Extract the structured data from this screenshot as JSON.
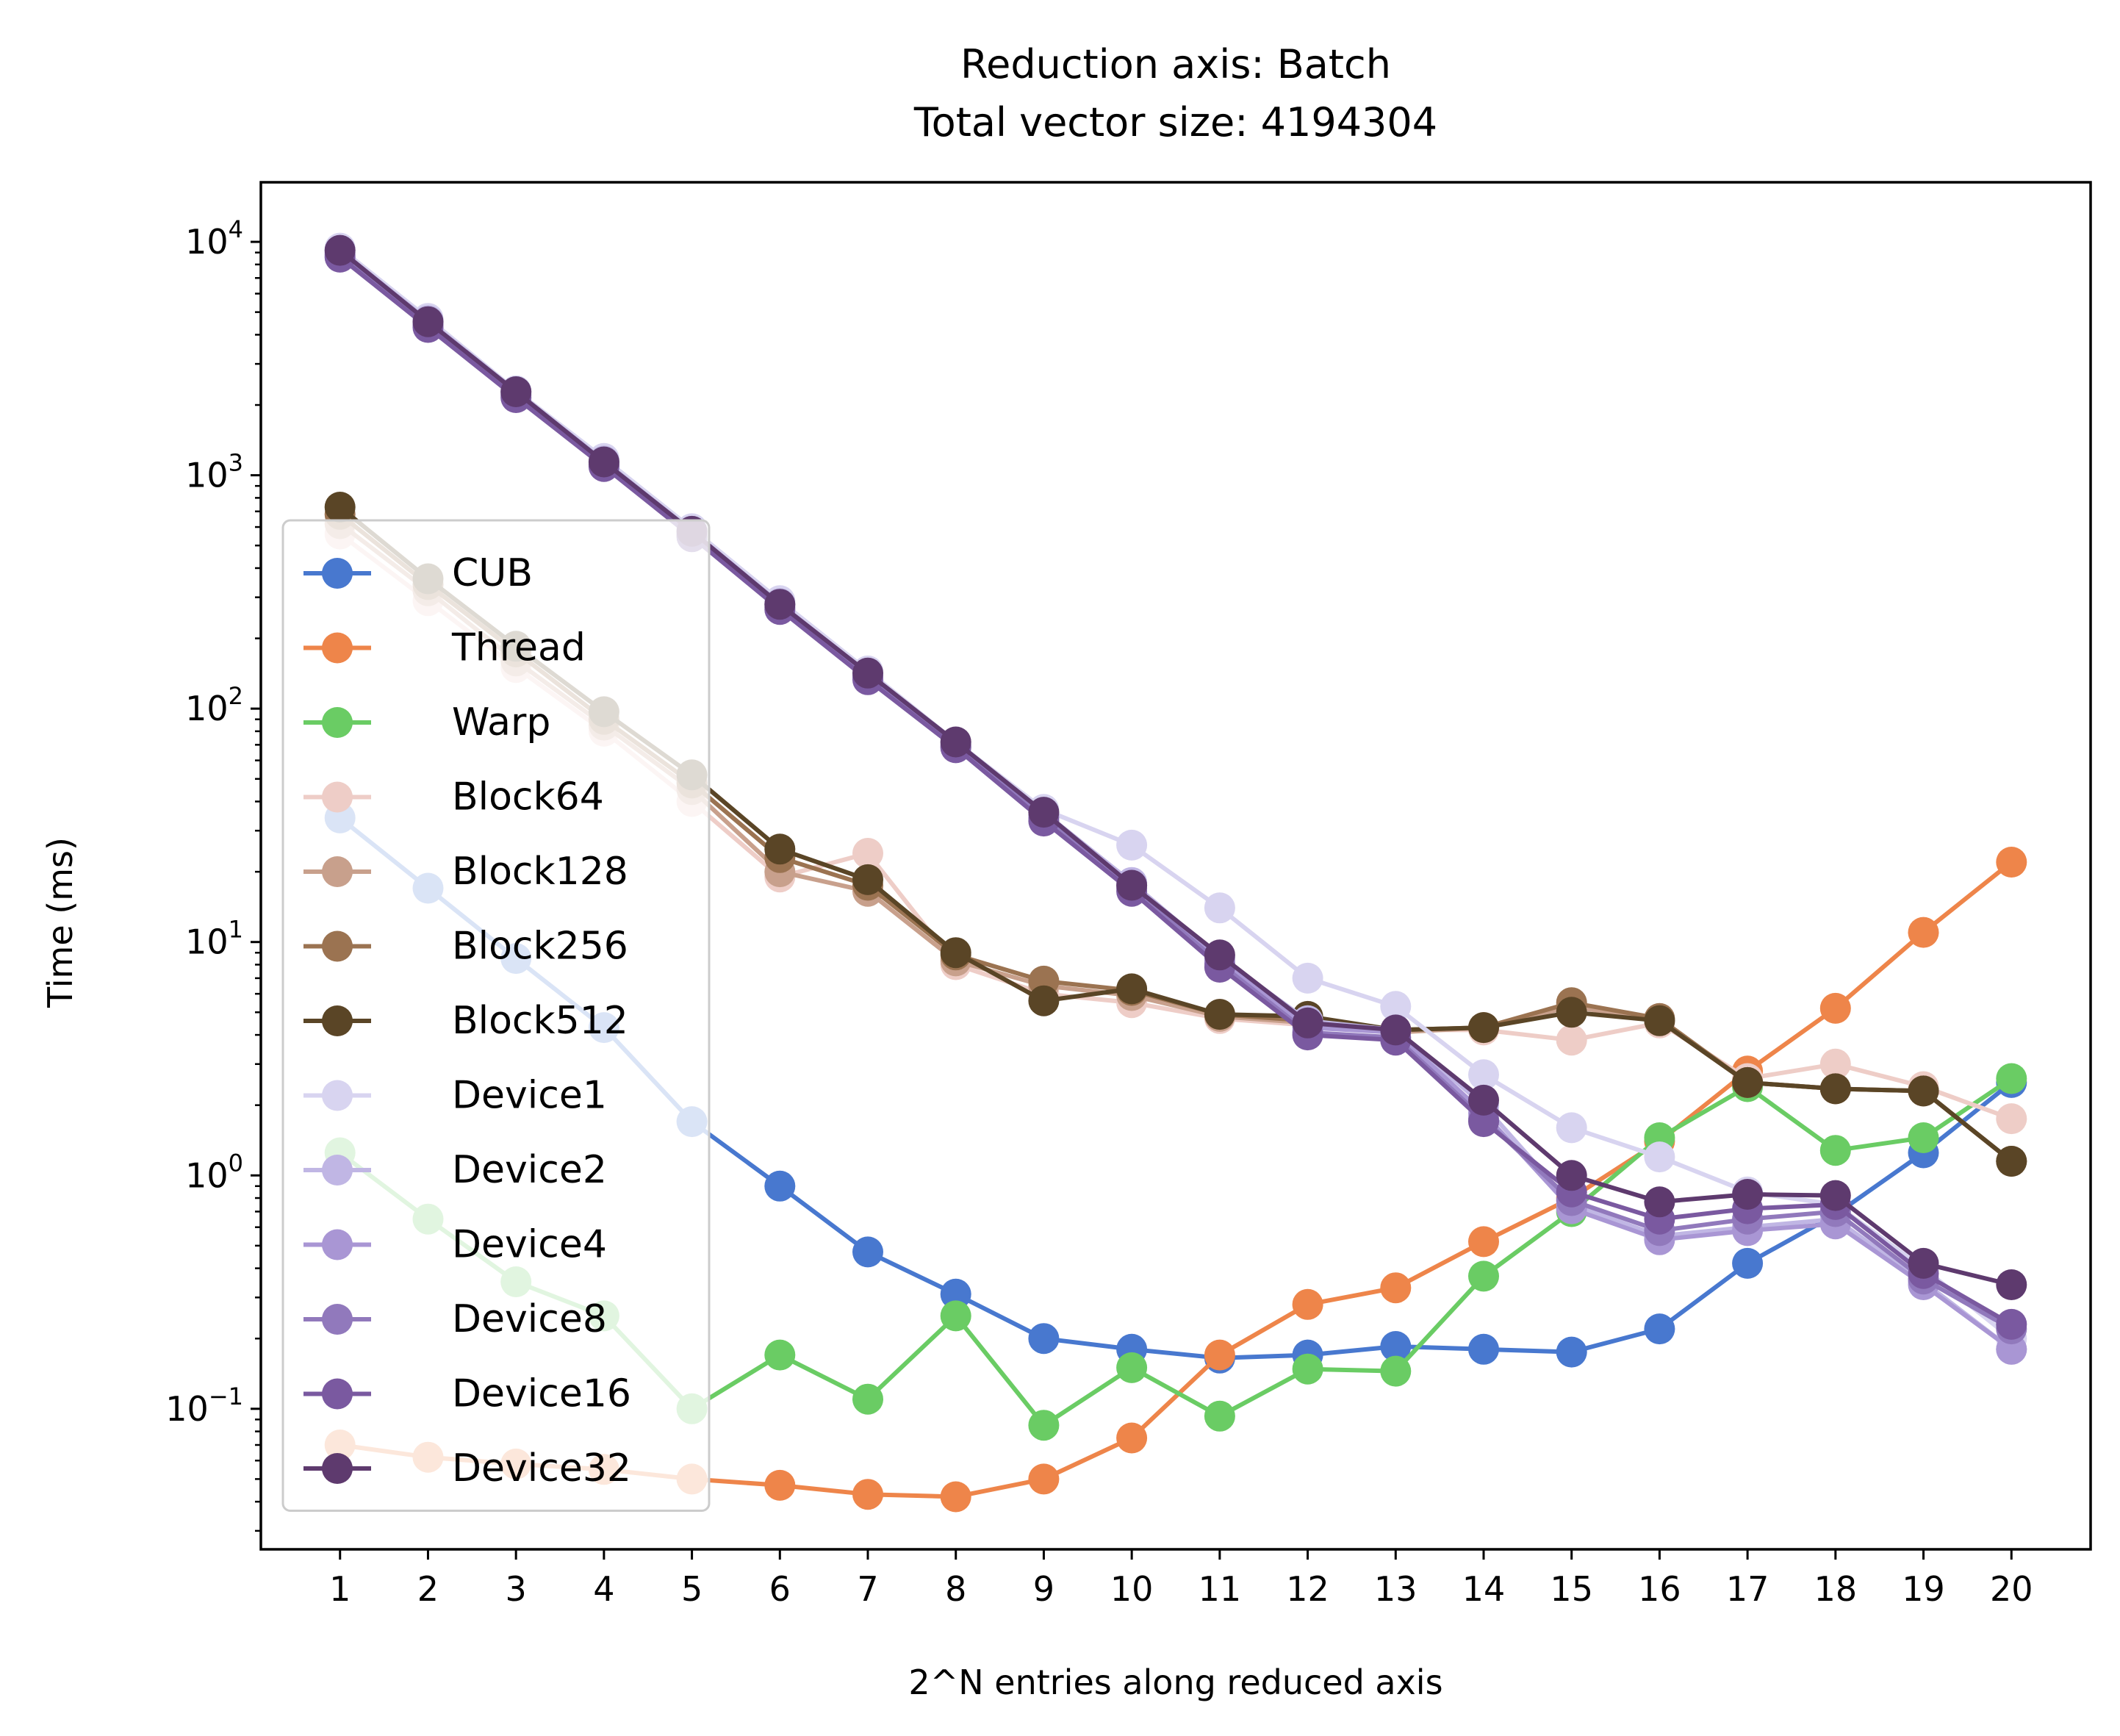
{
  "chart_data": {
    "type": "line",
    "title": "Reduction axis: Batch",
    "subtitle": "Total vector size: 4194304",
    "xlabel": "2^N entries along reduced axis",
    "ylabel": "Time (ms)",
    "yscale": "log",
    "ylim": [
      0.025,
      18000
    ],
    "xlim": [
      0.1,
      20.9
    ],
    "grid": false,
    "legend_position": "left",
    "x": [
      1,
      2,
      3,
      4,
      5,
      6,
      7,
      8,
      9,
      10,
      11,
      12,
      13,
      14,
      15,
      16,
      17,
      18,
      19,
      20
    ],
    "y_tick_labels": [
      {
        "value": 0.1,
        "base": "10",
        "exp": "−1"
      },
      {
        "value": 1,
        "base": "10",
        "exp": "0"
      },
      {
        "value": 10,
        "base": "10",
        "exp": "1"
      },
      {
        "value": 100,
        "base": "10",
        "exp": "2"
      },
      {
        "value": 1000,
        "base": "10",
        "exp": "3"
      },
      {
        "value": 10000,
        "base": "10",
        "exp": "4"
      }
    ],
    "series": [
      {
        "name": "CUB",
        "color": "#4878cf",
        "values": [
          34,
          17,
          8.5,
          4.3,
          1.7,
          0.9,
          0.47,
          0.31,
          0.2,
          0.18,
          0.165,
          0.17,
          0.185,
          0.18,
          0.175,
          0.22,
          0.42,
          0.68,
          1.25,
          2.5
        ]
      },
      {
        "name": "Thread",
        "color": "#ee854a",
        "values": [
          0.07,
          0.062,
          0.058,
          0.055,
          0.05,
          0.047,
          0.043,
          0.042,
          0.05,
          0.075,
          0.17,
          0.28,
          0.33,
          0.52,
          0.8,
          1.4,
          2.8,
          5.2,
          11,
          22
        ]
      },
      {
        "name": "Warp",
        "color": "#6acc64",
        "values": [
          1.25,
          0.65,
          0.35,
          0.25,
          0.1,
          0.17,
          0.11,
          0.25,
          0.085,
          0.15,
          0.093,
          0.148,
          0.145,
          0.37,
          0.7,
          1.45,
          2.4,
          1.28,
          1.45,
          2.6
        ]
      },
      {
        "name": "Block64",
        "color": "#eecdc7",
        "values": [
          560,
          290,
          150,
          80,
          40,
          19,
          24,
          8,
          6,
          5.5,
          4.7,
          4.4,
          4.2,
          4.2,
          3.8,
          4.5,
          2.6,
          3.0,
          2.4,
          1.75
        ]
      },
      {
        "name": "Block128",
        "color": "#c8a08c",
        "values": [
          620,
          320,
          160,
          85,
          45,
          20,
          16.5,
          8.3,
          6.5,
          5.9,
          4.8,
          4.5,
          4.1,
          4.3,
          5.3,
          4.6,
          2.5,
          2.35,
          2.3,
          1.15
        ]
      },
      {
        "name": "Block256",
        "color": "#9b7351",
        "values": [
          680,
          340,
          175,
          90,
          48,
          23,
          17.5,
          8.8,
          6.8,
          6.2,
          4.9,
          4.6,
          4.2,
          4.3,
          5.5,
          4.7,
          2.5,
          2.35,
          2.3,
          1.15
        ]
      },
      {
        "name": "Block512",
        "color": "#5a4526",
        "values": [
          730,
          360,
          185,
          97,
          52,
          25,
          18.5,
          9,
          5.6,
          6.3,
          4.9,
          4.8,
          4.2,
          4.3,
          5.0,
          4.6,
          2.5,
          2.35,
          2.3,
          1.15
        ]
      },
      {
        "name": "Device1",
        "color": "#d8d4f0",
        "values": [
          9400,
          4700,
          2300,
          1180,
          590,
          290,
          145,
          72,
          37,
          26,
          14,
          7,
          5.3,
          2.7,
          1.6,
          1.2,
          0.85,
          0.75,
          0.4,
          0.2
        ]
      },
      {
        "name": "Device2",
        "color": "#c0b6e4",
        "values": [
          9200,
          4600,
          2280,
          1150,
          575,
          282,
          140,
          71,
          36,
          18,
          8.6,
          4.6,
          4.2,
          2.0,
          0.75,
          0.55,
          0.6,
          0.65,
          0.35,
          0.18
        ]
      },
      {
        "name": "Device4",
        "color": "#a996d4",
        "values": [
          9000,
          4500,
          2240,
          1130,
          565,
          278,
          138,
          70,
          35,
          17.5,
          8.4,
          4.3,
          4.1,
          1.85,
          0.72,
          0.53,
          0.58,
          0.62,
          0.34,
          0.18
        ]
      },
      {
        "name": "Device8",
        "color": "#9179bc",
        "values": [
          8800,
          4400,
          2200,
          1110,
          555,
          272,
          136,
          69,
          34,
          17,
          8.1,
          4.1,
          3.9,
          1.75,
          0.78,
          0.58,
          0.65,
          0.7,
          0.36,
          0.22
        ]
      },
      {
        "name": "Device16",
        "color": "#7a59a0",
        "values": [
          8600,
          4300,
          2150,
          1090,
          545,
          266,
          133,
          68,
          33,
          16.5,
          7.8,
          4.0,
          3.8,
          1.7,
          0.85,
          0.65,
          0.72,
          0.75,
          0.38,
          0.23
        ]
      },
      {
        "name": "Device32",
        "color": "#5e3a6e",
        "values": [
          9200,
          4550,
          2280,
          1140,
          575,
          280,
          142,
          72,
          36,
          17.5,
          8.8,
          4.5,
          4.2,
          2.1,
          1.0,
          0.77,
          0.83,
          0.82,
          0.42,
          0.34
        ]
      }
    ]
  }
}
